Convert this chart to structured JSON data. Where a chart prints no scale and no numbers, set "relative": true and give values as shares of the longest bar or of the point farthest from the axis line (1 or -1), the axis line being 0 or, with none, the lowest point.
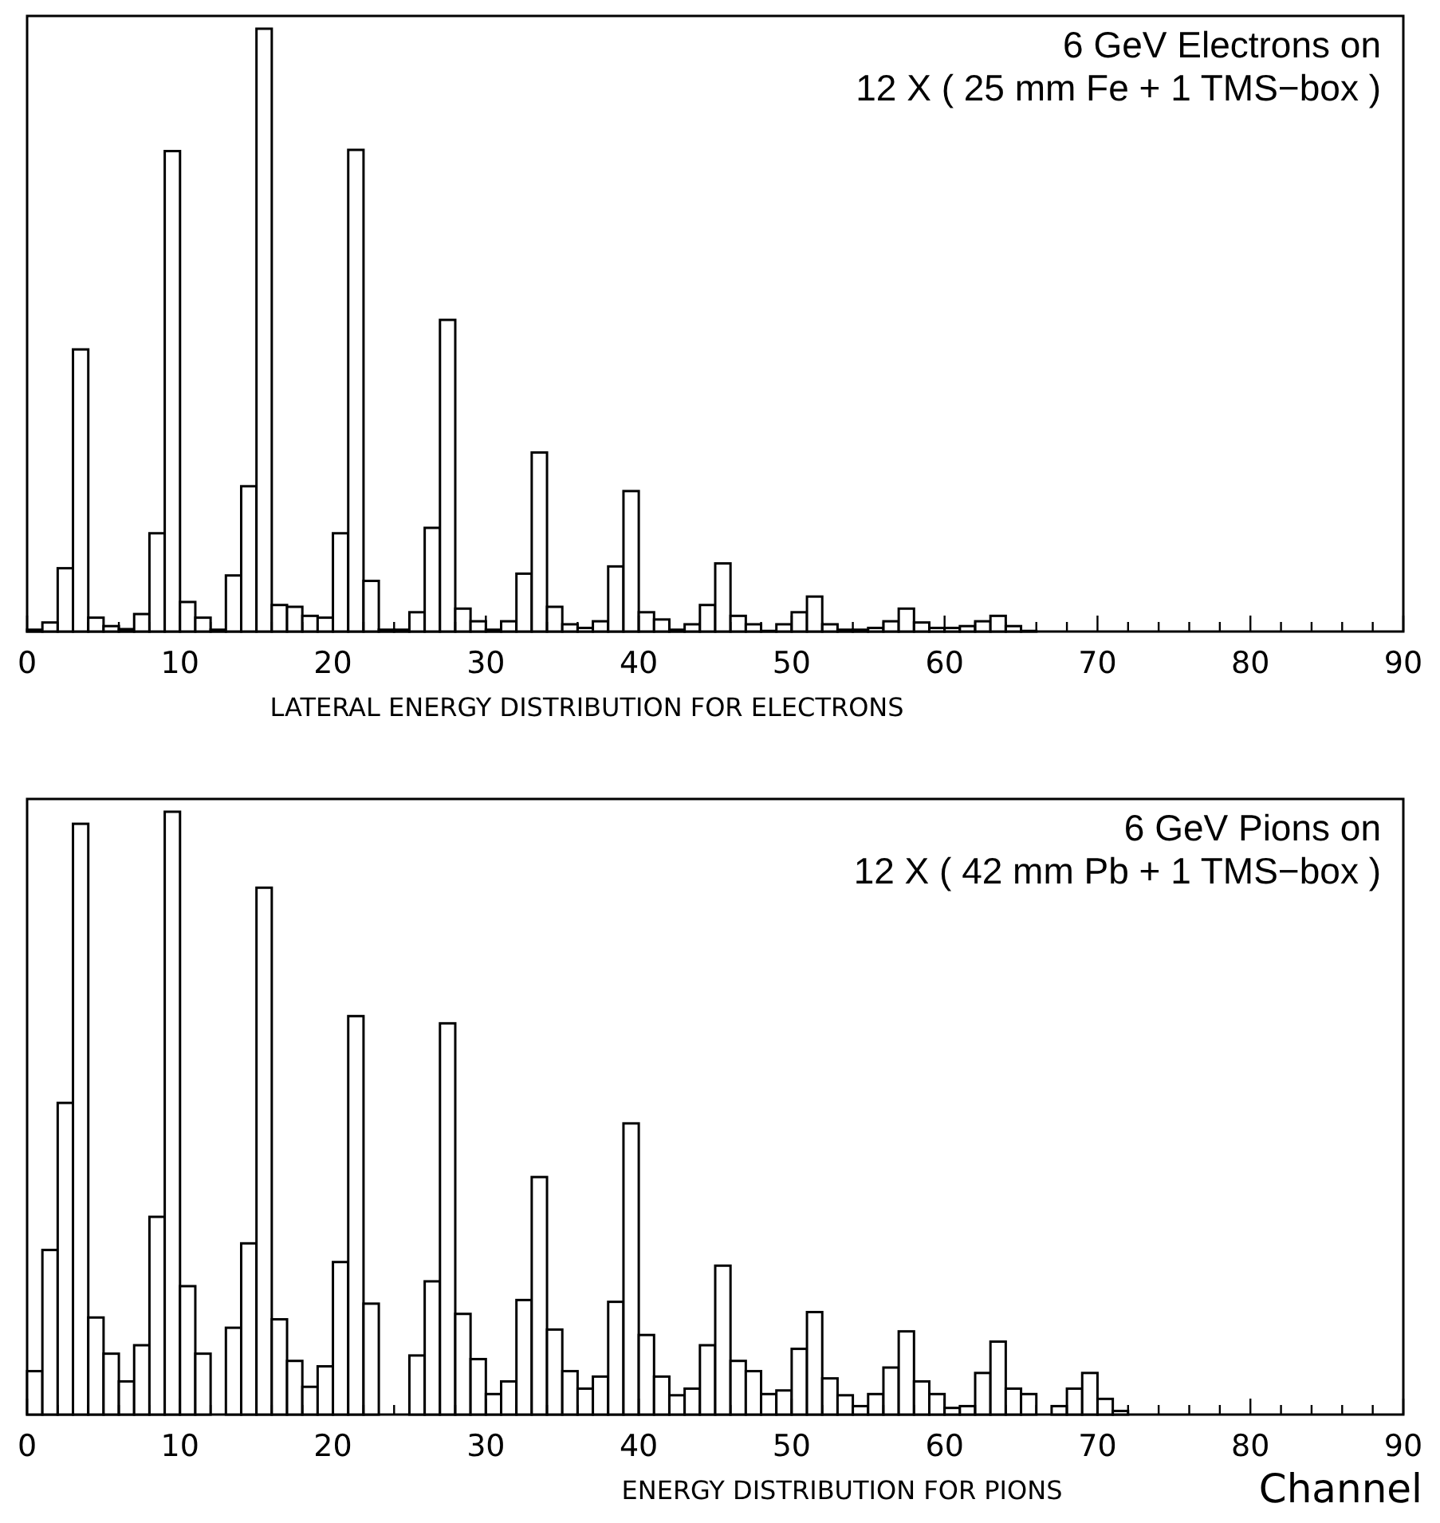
{
  "chart_data": [
    {
      "type": "bar",
      "relative": true,
      "color": "#000000",
      "annotations": [
        "6 GeV Electrons on",
        "12 X ( 25 mm Fe + 1 TMS−box )"
      ],
      "subtitle": "LATERAL ENERGY DISTRIBUTION FOR ELECTRONS",
      "x": [
        0.5,
        1.5,
        2.5,
        3.5,
        4.5,
        5.5,
        6.5,
        7.5,
        8.5,
        9.5,
        10.5,
        11.5,
        12.5,
        13.5,
        14.5,
        15.5,
        16.5,
        17.5,
        18.5,
        19.5,
        20.5,
        21.5,
        22.5,
        23.5,
        24.5,
        25.5,
        26.5,
        27.5,
        28.5,
        29.5,
        30.5,
        31.5,
        32.5,
        33.5,
        34.5,
        35.5,
        36.5,
        37.5,
        38.5,
        39.5,
        40.5,
        41.5,
        42.5,
        43.5,
        44.5,
        45.5,
        46.5,
        47.5,
        48.5,
        49.5,
        50.5,
        51.5,
        52.5,
        53.5,
        54.5,
        55.5,
        56.5,
        57.5,
        58.5,
        59.5,
        60.5,
        61.5,
        62.5,
        63.5,
        64.5,
        65.5,
        66.5,
        67.5,
        68.5,
        69.5,
        70.5,
        71.5,
        72.5,
        73.5,
        74.5,
        75.5,
        76.5,
        77.5,
        78.5,
        79.5,
        80.5,
        81.5,
        82.5,
        83.5,
        84.5,
        85.5,
        86.5,
        87.5,
        88.5,
        89.5
      ],
      "values": [
        0.003,
        0.015,
        0.105,
        0.468,
        0.023,
        0.009,
        0.004,
        0.029,
        0.163,
        0.797,
        0.049,
        0.023,
        0.003,
        0.093,
        0.241,
        1,
        0.044,
        0.041,
        0.026,
        0.023,
        0.163,
        0.799,
        0.084,
        0.003,
        0.003,
        0.032,
        0.172,
        0.517,
        0.038,
        0.017,
        0.003,
        0.017,
        0.096,
        0.297,
        0.041,
        0.012,
        0.006,
        0.017,
        0.108,
        0.233,
        0.032,
        0.02,
        0.003,
        0.012,
        0.044,
        0.113,
        0.026,
        0.012,
        0.001,
        0.012,
        0.032,
        0.058,
        0.012,
        0.003,
        0.003,
        0.006,
        0.017,
        0.038,
        0.015,
        0.006,
        0.006,
        0.009,
        0.017,
        0.026,
        0.009,
        0.001,
        0,
        0,
        0,
        0,
        0,
        0,
        0,
        0,
        0,
        0,
        0,
        0,
        0,
        0,
        0,
        0,
        0,
        0,
        0,
        0,
        0,
        0,
        0,
        0
      ],
      "xlim": [
        0,
        90
      ],
      "xticks": [
        0,
        {
          "value": 2,
          "label": null
        },
        {
          "value": 4,
          "label": null
        },
        {
          "value": 6,
          "label": null
        },
        {
          "value": 8,
          "label": null
        },
        10,
        {
          "value": 12,
          "label": null
        },
        {
          "value": 14,
          "label": null
        },
        {
          "value": 16,
          "label": null
        },
        {
          "value": 18,
          "label": null
        },
        20,
        {
          "value": 22,
          "label": null
        },
        {
          "value": 24,
          "label": null
        },
        {
          "value": 26,
          "label": null
        },
        {
          "value": 28,
          "label": null
        },
        30,
        {
          "value": 32,
          "label": null
        },
        {
          "value": 34,
          "label": null
        },
        {
          "value": 36,
          "label": null
        },
        {
          "value": 38,
          "label": null
        },
        40,
        {
          "value": 42,
          "label": null
        },
        {
          "value": 44,
          "label": null
        },
        {
          "value": 46,
          "label": null
        },
        {
          "value": 48,
          "label": null
        },
        50,
        {
          "value": 52,
          "label": null
        },
        {
          "value": 54,
          "label": null
        },
        {
          "value": 56,
          "label": null
        },
        {
          "value": 58,
          "label": null
        },
        60,
        {
          "value": 62,
          "label": null
        },
        {
          "value": 64,
          "label": null
        },
        {
          "value": 66,
          "label": null
        },
        {
          "value": 68,
          "label": null
        },
        70,
        {
          "value": 72,
          "label": null
        },
        {
          "value": 74,
          "label": null
        },
        {
          "value": 76,
          "label": null
        },
        {
          "value": 78,
          "label": null
        },
        80,
        {
          "value": 82,
          "label": null
        },
        {
          "value": 84,
          "label": null
        },
        {
          "value": 86,
          "label": null
        },
        {
          "value": 88,
          "label": null
        },
        90
      ]
    },
    {
      "type": "bar",
      "relative": true,
      "color": "#000000",
      "annotations": [
        "6 GeV Pions on",
        "12 X ( 42 mm Pb + 1 TMS−box )"
      ],
      "subtitle": "ENERGY DISTRIBUTION FOR PIONS",
      "xlabel": "Channel",
      "x": [
        0.5,
        1.5,
        2.5,
        3.5,
        4.5,
        5.5,
        6.5,
        7.5,
        8.5,
        9.5,
        10.5,
        11.5,
        12.5,
        13.5,
        14.5,
        15.5,
        16.5,
        17.5,
        18.5,
        19.5,
        20.5,
        21.5,
        22.5,
        23.5,
        24.5,
        25.5,
        26.5,
        27.5,
        28.5,
        29.5,
        30.5,
        31.5,
        32.5,
        33.5,
        34.5,
        35.5,
        36.5,
        37.5,
        38.5,
        39.5,
        40.5,
        41.5,
        42.5,
        43.5,
        44.5,
        45.5,
        46.5,
        47.5,
        48.5,
        49.5,
        50.5,
        51.5,
        52.5,
        53.5,
        54.5,
        55.5,
        56.5,
        57.5,
        58.5,
        59.5,
        60.5,
        61.5,
        62.5,
        63.5,
        64.5,
        65.5,
        66.5,
        67.5,
        68.5,
        69.5,
        70.5,
        71.5,
        72.5,
        73.5,
        74.5,
        75.5,
        76.5,
        77.5,
        78.5,
        79.5,
        80.5,
        81.5,
        82.5,
        83.5,
        84.5,
        85.5,
        86.5,
        87.5,
        88.5,
        89.5
      ],
      "values": [
        0.072,
        0.273,
        0.517,
        0.98,
        0.161,
        0.101,
        0.055,
        0.115,
        0.328,
        1,
        0.213,
        0.101,
        0,
        0.144,
        0.284,
        0.874,
        0.158,
        0.089,
        0.046,
        0.08,
        0.253,
        0.661,
        0.184,
        0,
        0,
        0.098,
        0.221,
        0.649,
        0.167,
        0.092,
        0.034,
        0.055,
        0.19,
        0.394,
        0.141,
        0.072,
        0.043,
        0.063,
        0.187,
        0.483,
        0.132,
        0.063,
        0.032,
        0.043,
        0.115,
        0.247,
        0.089,
        0.072,
        0.034,
        0.04,
        0.109,
        0.17,
        0.06,
        0.032,
        0.014,
        0.034,
        0.078,
        0.138,
        0.055,
        0.034,
        0.011,
        0.014,
        0.069,
        0.121,
        0.043,
        0.034,
        0,
        0.014,
        0.043,
        0.069,
        0.026,
        0.006,
        0,
        0,
        0,
        0,
        0,
        0,
        0,
        0,
        0,
        0,
        0,
        0,
        0,
        0,
        0,
        0,
        0,
        0
      ],
      "xlim": [
        0,
        90
      ],
      "xticks": [
        0,
        {
          "value": 2,
          "label": null
        },
        {
          "value": 4,
          "label": null
        },
        {
          "value": 6,
          "label": null
        },
        {
          "value": 8,
          "label": null
        },
        10,
        {
          "value": 12,
          "label": null
        },
        {
          "value": 14,
          "label": null
        },
        {
          "value": 16,
          "label": null
        },
        {
          "value": 18,
          "label": null
        },
        20,
        {
          "value": 22,
          "label": null
        },
        {
          "value": 24,
          "label": null
        },
        {
          "value": 26,
          "label": null
        },
        {
          "value": 28,
          "label": null
        },
        30,
        {
          "value": 32,
          "label": null
        },
        {
          "value": 34,
          "label": null
        },
        {
          "value": 36,
          "label": null
        },
        {
          "value": 38,
          "label": null
        },
        40,
        {
          "value": 42,
          "label": null
        },
        {
          "value": 44,
          "label": null
        },
        {
          "value": 46,
          "label": null
        },
        {
          "value": 48,
          "label": null
        },
        50,
        {
          "value": 52,
          "label": null
        },
        {
          "value": 54,
          "label": null
        },
        {
          "value": 56,
          "label": null
        },
        {
          "value": 58,
          "label": null
        },
        60,
        {
          "value": 62,
          "label": null
        },
        {
          "value": 64,
          "label": null
        },
        {
          "value": 66,
          "label": null
        },
        {
          "value": 68,
          "label": null
        },
        70,
        {
          "value": 72,
          "label": null
        },
        {
          "value": 74,
          "label": null
        },
        {
          "value": 76,
          "label": null
        },
        {
          "value": 78,
          "label": null
        },
        80,
        {
          "value": 82,
          "label": null
        },
        {
          "value": 84,
          "label": null
        },
        {
          "value": 86,
          "label": null
        },
        {
          "value": 88,
          "label": null
        },
        90
      ]
    }
  ]
}
